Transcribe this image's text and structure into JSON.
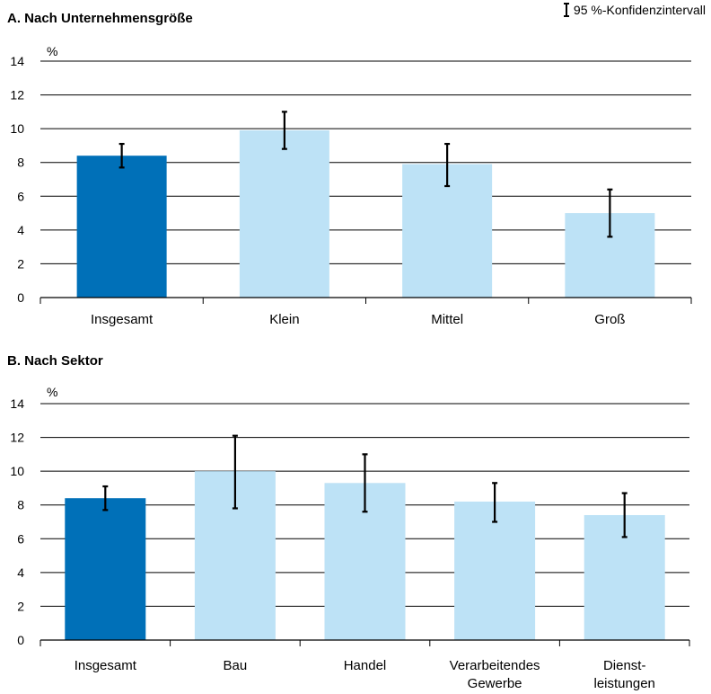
{
  "legend": {
    "ci_label": "95 %-Konfidenzintervall"
  },
  "chart_data": [
    {
      "type": "bar",
      "title": "A. Nach Unternehmensgröße",
      "ylabel": "%",
      "ylim": [
        0,
        14
      ],
      "yticks": [
        0,
        2,
        4,
        6,
        8,
        10,
        12,
        14
      ],
      "grid": true,
      "categories": [
        "Insgesamt",
        "Klein",
        "Mittel",
        "Groß"
      ],
      "values": [
        8.4,
        9.9,
        7.9,
        5.0
      ],
      "ci_lower": [
        7.7,
        8.8,
        6.6,
        3.6
      ],
      "ci_upper": [
        9.1,
        11.0,
        9.1,
        6.4
      ],
      "colors": [
        "#0070b8",
        "#bde2f6",
        "#bde2f6",
        "#bde2f6"
      ]
    },
    {
      "type": "bar",
      "title": "B. Nach Sektor",
      "ylabel": "%",
      "ylim": [
        0,
        14
      ],
      "yticks": [
        0,
        2,
        4,
        6,
        8,
        10,
        12,
        14
      ],
      "grid": true,
      "categories": [
        "Insgesamt",
        "Bau",
        "Handel",
        "Verarbeitendes Gewerbe",
        "Dienst-leistungen"
      ],
      "category_lines": [
        [
          "Insgesamt"
        ],
        [
          "Bau"
        ],
        [
          "Handel"
        ],
        [
          "Verarbeitendes",
          "Gewerbe"
        ],
        [
          "Dienst-",
          "leistungen"
        ]
      ],
      "values": [
        8.4,
        10.0,
        9.3,
        8.2,
        7.4
      ],
      "ci_lower": [
        7.7,
        7.8,
        7.6,
        7.0,
        6.1
      ],
      "ci_upper": [
        9.1,
        12.1,
        11.0,
        9.3,
        8.7
      ],
      "colors": [
        "#0070b8",
        "#bde2f6",
        "#bde2f6",
        "#bde2f6",
        "#bde2f6"
      ]
    }
  ]
}
